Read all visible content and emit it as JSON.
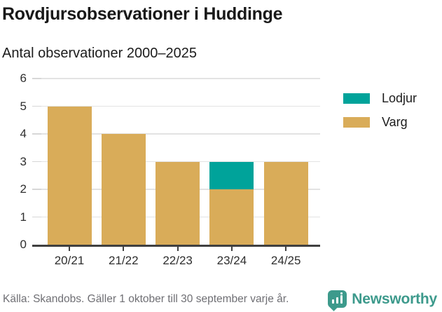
{
  "header": {
    "title": "Rovdjursobservationer i Huddinge",
    "subtitle": "Antal observationer 2000–2025"
  },
  "chart_data": {
    "type": "bar",
    "stacked": true,
    "title": "Rovdjursobservationer i Huddinge",
    "subtitle": "Antal observationer 2000–2025",
    "categories": [
      "20/21",
      "21/22",
      "22/23",
      "23/24",
      "24/25"
    ],
    "series": [
      {
        "name": "Varg",
        "color": "#d9ac59",
        "values": [
          5,
          4,
          3,
          2,
          3
        ]
      },
      {
        "name": "Lodjur",
        "color": "#00a39a",
        "values": [
          0,
          0,
          0,
          1,
          0
        ]
      }
    ],
    "totals": [
      5,
      4,
      3,
      3,
      3
    ],
    "xlabel": "",
    "ylabel": "",
    "ylim": [
      0,
      6
    ],
    "yticks": [
      0,
      1,
      2,
      3,
      4,
      5,
      6
    ],
    "grid": true,
    "legend_position": "right"
  },
  "legend": {
    "items": [
      {
        "label": "Lodjur",
        "color": "#00a39a"
      },
      {
        "label": "Varg",
        "color": "#d9ac59"
      }
    ]
  },
  "footer": {
    "source": "Källa: Skandobs. Gäller 1 oktober till 30 september varje år.",
    "brand": "Newsworthy",
    "brand_color": "#3d9a8c",
    "brand_icon": "bar-chart-bubble-icon"
  },
  "colors": {
    "grid": "#e3e3e3",
    "axis": "#404040",
    "title_text": "#191919",
    "axis_text": "#2e2e2e",
    "muted_text": "#6f6f74"
  }
}
